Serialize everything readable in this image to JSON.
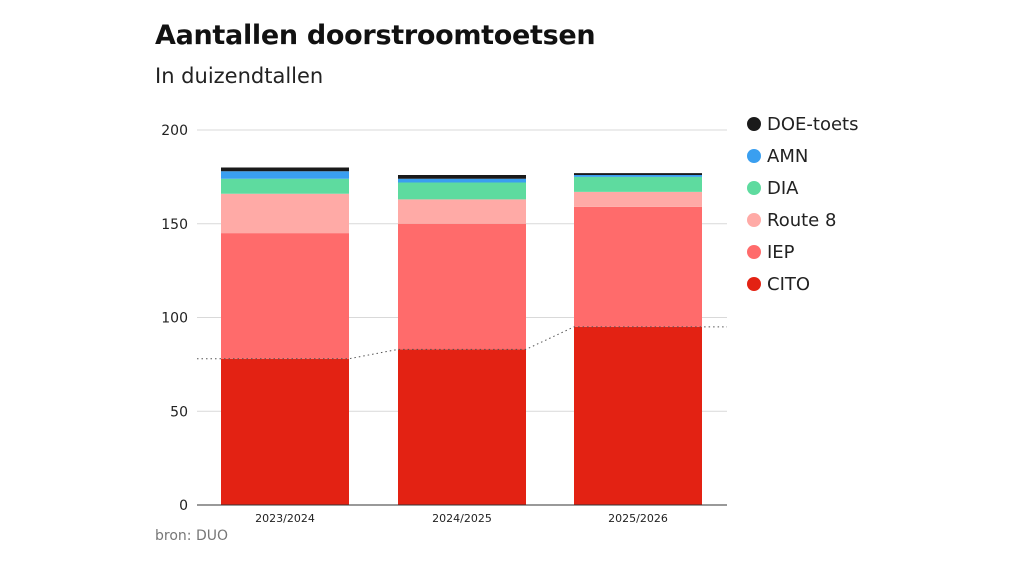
{
  "chart_data": {
    "type": "bar",
    "stacked": true,
    "title": "Aantallen doorstroomtoetsen",
    "subtitle": "In duizendtallen",
    "source": "bron: DUO",
    "categories": [
      "2023/2024",
      "2024/2025",
      "2025/2026"
    ],
    "yticks": [
      "0",
      "50",
      "100",
      "150",
      "200"
    ],
    "ylim": [
      0,
      200
    ],
    "grid": true,
    "legend_position": "right",
    "series": [
      {
        "name": "CITO",
        "color": "#e32213",
        "values": [
          78,
          83,
          95
        ]
      },
      {
        "name": "IEP",
        "color": "#ff6b6b",
        "values": [
          67,
          67,
          64
        ]
      },
      {
        "name": "Route 8",
        "color": "#ffaaa6",
        "values": [
          21,
          13,
          8
        ]
      },
      {
        "name": "DIA",
        "color": "#5edb9f",
        "values": [
          8,
          9,
          8
        ]
      },
      {
        "name": "AMN",
        "color": "#3a9ff0",
        "values": [
          4,
          2,
          1
        ]
      },
      {
        "name": "DOE-toets",
        "color": "#1a1a1a",
        "values": [
          2,
          2,
          1
        ]
      }
    ],
    "legend_order": [
      "DOE-toets",
      "AMN",
      "DIA",
      "Route 8",
      "IEP",
      "CITO"
    ],
    "reference_line": {
      "style": "dotted",
      "values": [
        78,
        83,
        95
      ]
    }
  }
}
